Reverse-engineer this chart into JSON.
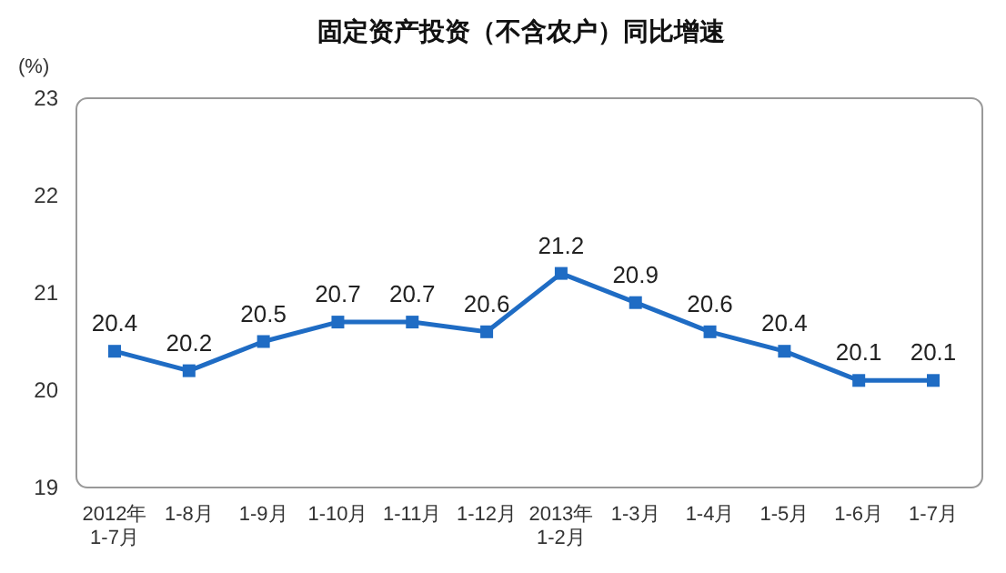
{
  "chart_data": {
    "type": "line",
    "title": "固定资产投资（不含农户）同比增速",
    "ylabel": "(%)",
    "categories": [
      "2012年\n1-7月",
      "1-8月",
      "1-9月",
      "1-10月",
      "1-11月",
      "1-12月",
      "2013年\n1-2月",
      "1-3月",
      "1-4月",
      "1-5月",
      "1-6月",
      "1-7月"
    ],
    "series": [
      {
        "color": "#1f6cc4",
        "values": [
          20.4,
          20.2,
          20.5,
          20.7,
          20.7,
          20.6,
          21.2,
          20.9,
          20.6,
          20.4,
          20.1,
          20.1
        ]
      }
    ],
    "ylim": [
      19,
      23
    ],
    "yticks": [
      19,
      20,
      21,
      22,
      23
    ],
    "grid": false,
    "marker": "square",
    "line_style": "solid",
    "data_labels": true
  }
}
